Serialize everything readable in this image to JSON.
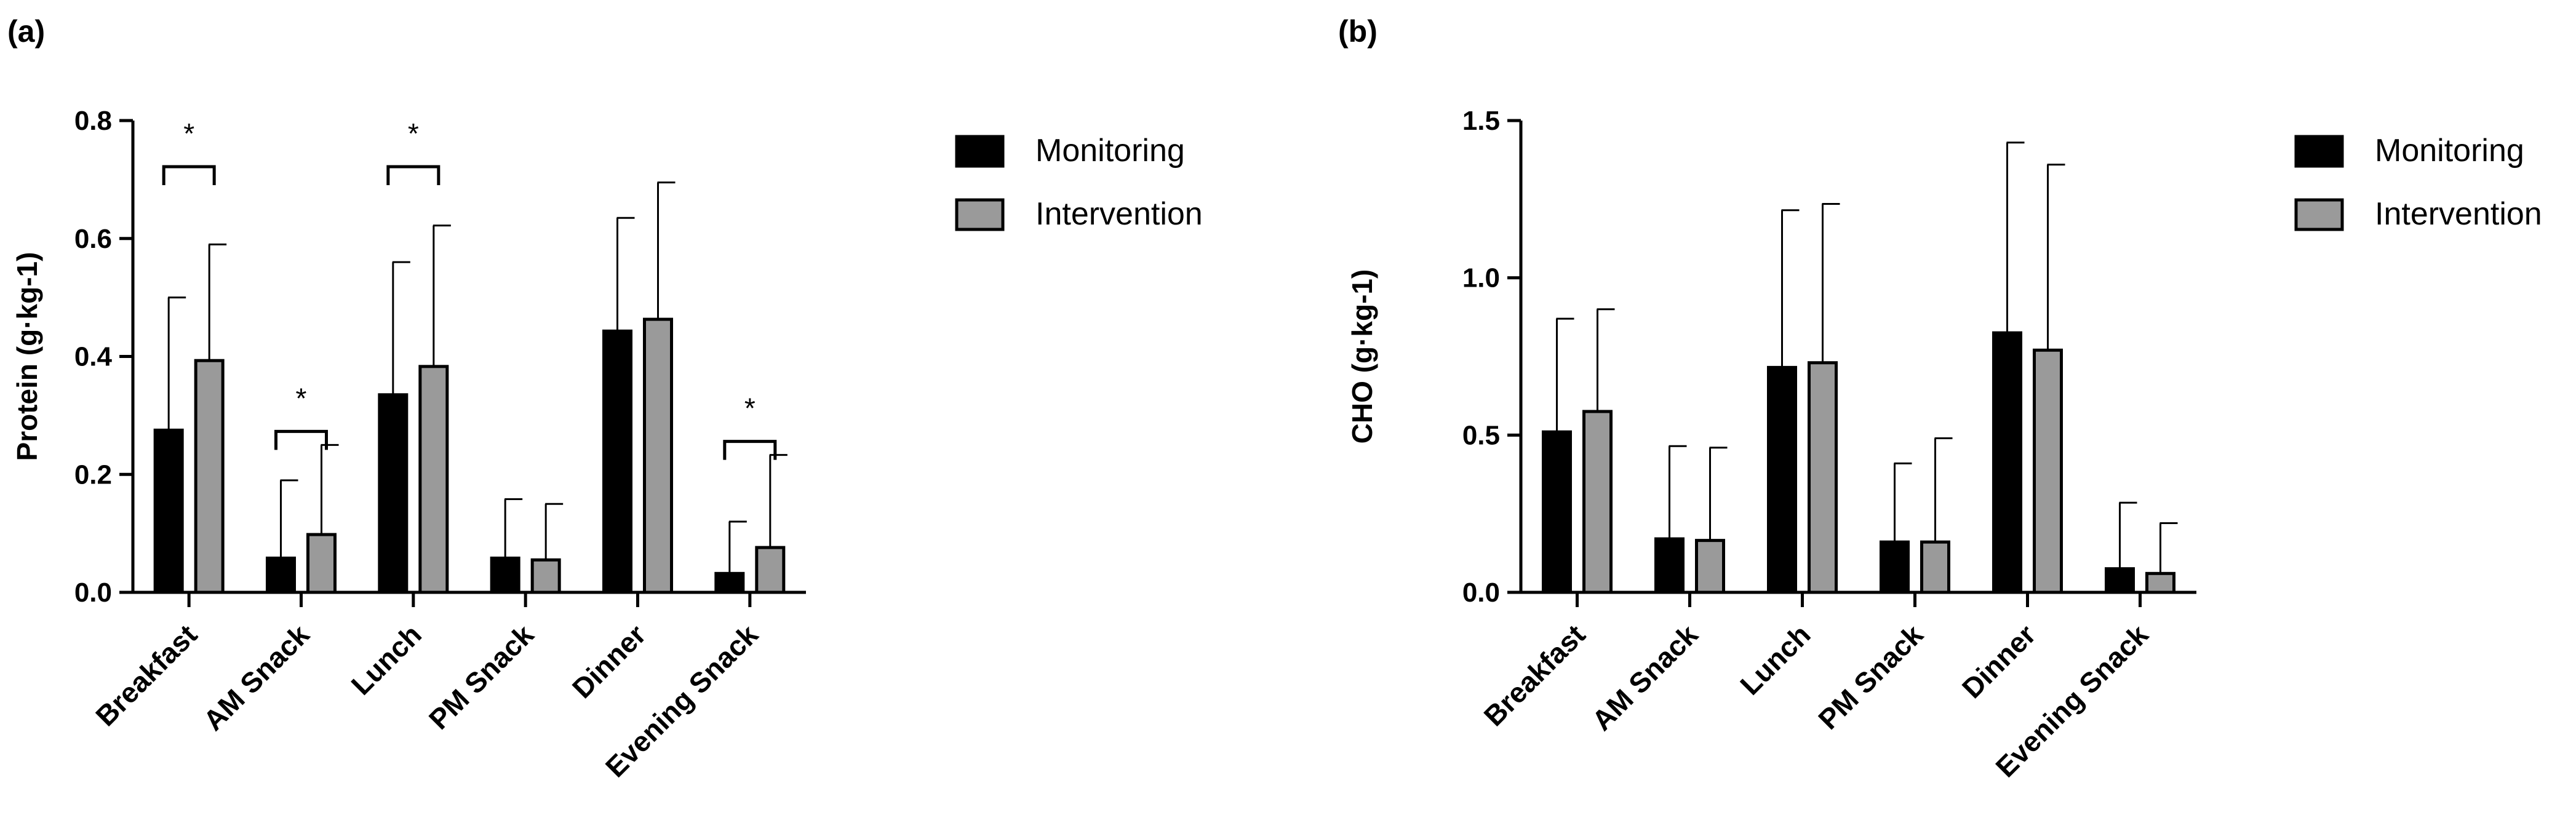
{
  "chart_data": [
    {
      "type": "bar",
      "panel_label": "(a)",
      "title": "",
      "xlabel": "",
      "ylabel": "Protein (g·kg-1)",
      "ylim": [
        0,
        0.8
      ],
      "yticks": [
        0.0,
        0.2,
        0.4,
        0.6,
        0.8
      ],
      "ytick_labels": [
        "0.0",
        "0.2",
        "0.4",
        "0.6",
        "0.8"
      ],
      "categories": [
        "Breakfast",
        "AM Snack",
        "Lunch",
        "PM Snack",
        "Dinner",
        "Evening Snack"
      ],
      "series": [
        {
          "name": "Monitoring",
          "color": "#000000",
          "values": [
            0.275,
            0.058,
            0.335,
            0.058,
            0.443,
            0.032
          ],
          "error_upper": [
            0.5,
            0.19,
            0.56,
            0.158,
            0.635,
            0.12
          ]
        },
        {
          "name": "Intervention",
          "color": "#9a9a9a",
          "values": [
            0.393,
            0.098,
            0.383,
            0.055,
            0.463,
            0.076
          ],
          "error_upper": [
            0.59,
            0.25,
            0.622,
            0.15,
            0.695,
            0.233
          ]
        }
      ],
      "significance": [
        {
          "category_index": 0,
          "label": "*"
        },
        {
          "category_index": 1,
          "label": "*"
        },
        {
          "category_index": 2,
          "label": "*"
        },
        {
          "category_index": 5,
          "label": "*"
        }
      ],
      "legend": [
        "Monitoring",
        "Intervention"
      ],
      "legend_position": "right"
    },
    {
      "type": "bar",
      "panel_label": "(b)",
      "title": "",
      "xlabel": "",
      "ylabel": "CHO (g·kg-1)",
      "ylim": [
        0,
        1.5
      ],
      "yticks": [
        0.0,
        0.5,
        1.0,
        1.5
      ],
      "ytick_labels": [
        "0.0",
        "0.5",
        "1.0",
        "1.5"
      ],
      "categories": [
        "Breakfast",
        "AM Snack",
        "Lunch",
        "PM Snack",
        "Dinner",
        "Evening Snack"
      ],
      "series": [
        {
          "name": "Monitoring",
          "color": "#000000",
          "values": [
            0.51,
            0.17,
            0.715,
            0.16,
            0.825,
            0.075
          ],
          "error_upper": [
            0.87,
            0.465,
            1.215,
            0.41,
            1.43,
            0.285
          ]
        },
        {
          "name": "Intervention",
          "color": "#9a9a9a",
          "values": [
            0.575,
            0.165,
            0.73,
            0.16,
            0.77,
            0.06
          ],
          "error_upper": [
            0.9,
            0.46,
            1.235,
            0.49,
            1.36,
            0.22
          ]
        }
      ],
      "significance": [],
      "legend": [
        "Monitoring",
        "Intervention"
      ],
      "legend_position": "right"
    }
  ]
}
